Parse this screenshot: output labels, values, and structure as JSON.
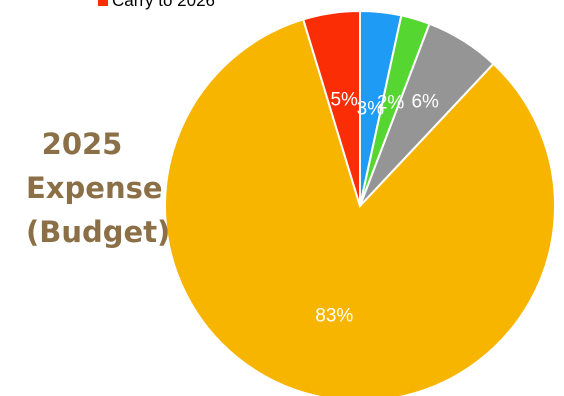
{
  "side_title": {
    "line1": "2025",
    "line2": "Expense",
    "line3": "(Budget)"
  },
  "colors": {
    "title": "#8b6f47",
    "label": "#ffffff"
  },
  "chart_data": {
    "type": "pie",
    "start": "12 o'clock",
    "direction": "clockwise",
    "legend_position": "top (partially cropped)",
    "slices": [
      {
        "label": "3%",
        "value": 3.4,
        "color": "#1e9bf5"
      },
      {
        "label": "2%",
        "value": 2.4,
        "color": "#55d630"
      },
      {
        "label": "6%",
        "value": 6.2,
        "color": "#959595"
      },
      {
        "label": "83%",
        "value": 83.3,
        "color": "#f7b500"
      },
      {
        "label": "5%",
        "value": 4.7,
        "color": "#fb2d05"
      }
    ],
    "legend": [
      {
        "name": "Carry to 2026",
        "color": "#fb2d05"
      }
    ]
  }
}
